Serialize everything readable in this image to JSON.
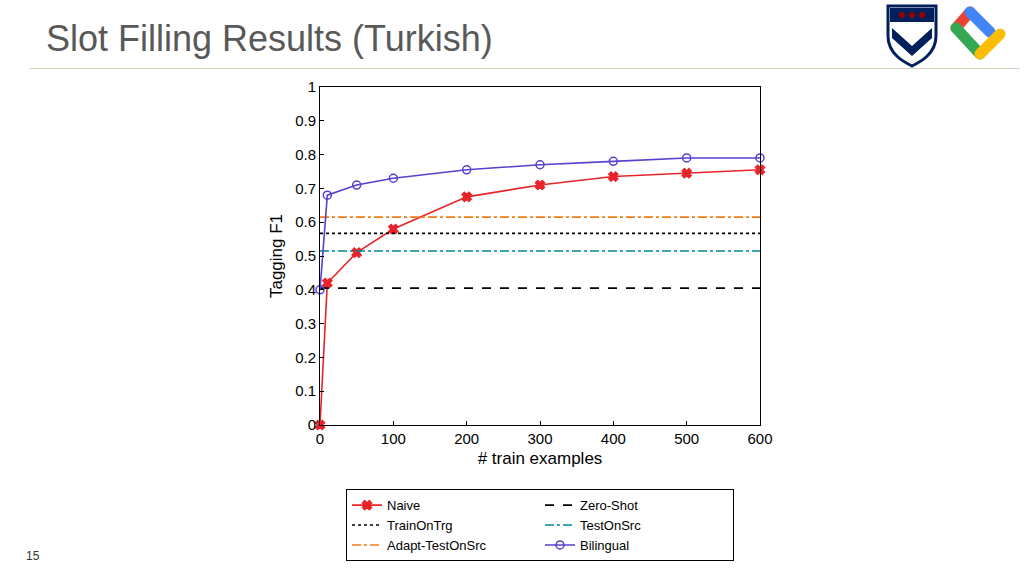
{
  "title": "Slot Filling Results (Turkish)",
  "page_number": "15",
  "chart_data": {
    "type": "line",
    "x_label": "# train examples",
    "y_label": "Tagging F1",
    "x": [
      0,
      10,
      50,
      100,
      200,
      300,
      400,
      500,
      600
    ],
    "xlim": [
      0,
      600
    ],
    "xticks": [
      0,
      100,
      200,
      300,
      400,
      500,
      600
    ],
    "ylim": [
      0,
      1
    ],
    "yticks": [
      0,
      0.1,
      0.2,
      0.3,
      0.4,
      0.5,
      0.6,
      0.7,
      0.8,
      0.9,
      1
    ],
    "grid": false,
    "legend": "bottom",
    "series": [
      {
        "name": "Naive",
        "color": "#e8242b",
        "marker": "x",
        "line_style": "solid",
        "values": [
          0,
          0.42,
          0.51,
          0.58,
          0.675,
          0.71,
          0.735,
          0.745,
          0.755
        ]
      },
      {
        "name": "Zero-Shot",
        "color": "#000000",
        "line_style": "dash",
        "values": [
          0.405,
          0.405,
          0.405,
          0.405,
          0.405,
          0.405,
          0.405,
          0.405,
          0.405
        ]
      },
      {
        "name": "TrainOnTrg",
        "color": "#000000",
        "line_style": "dot",
        "values": [
          0.567,
          0.567,
          0.567,
          0.567,
          0.567,
          0.567,
          0.567,
          0.567,
          0.567
        ]
      },
      {
        "name": "TestOnSrc",
        "color": "#008b8b",
        "line_style": "dashdot",
        "values": [
          0.515,
          0.515,
          0.515,
          0.515,
          0.515,
          0.515,
          0.515,
          0.515,
          0.515
        ]
      },
      {
        "name": "Adapt-TestOnSrc",
        "color": "#f07c1a",
        "line_style": "dashdot",
        "values": [
          0.615,
          0.615,
          0.615,
          0.615,
          0.615,
          0.615,
          0.615,
          0.615,
          0.615
        ]
      },
      {
        "name": "Bilingual",
        "color": "#5a3fd0",
        "marker": "circle-open",
        "line_style": "solid",
        "values": [
          0.4,
          0.68,
          0.71,
          0.73,
          0.755,
          0.77,
          0.78,
          0.79,
          0.79
        ]
      }
    ]
  }
}
